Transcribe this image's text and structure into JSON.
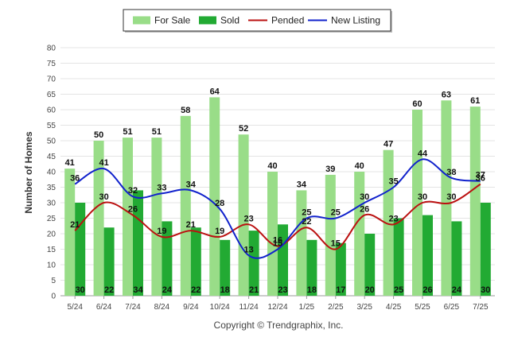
{
  "chart_data": {
    "type": "bar",
    "title": "",
    "xlabel": "",
    "ylabel": "Number of Homes",
    "ylim": [
      0,
      80
    ],
    "ytick_step": 5,
    "grid": true,
    "legend_position": "top-center",
    "credit": "Copyright © Trendgraphix, Inc.",
    "categories": [
      "5/24",
      "6/24",
      "7/24",
      "8/24",
      "9/24",
      "10/24",
      "11/24",
      "12/24",
      "1/25",
      "2/25",
      "3/25",
      "4/25",
      "5/25",
      "6/25",
      "7/25"
    ],
    "series": [
      {
        "name": "For Sale",
        "kind": "bar",
        "color": "#99dd88",
        "values": [
          41,
          50,
          51,
          51,
          58,
          64,
          52,
          40,
          34,
          39,
          40,
          47,
          60,
          63,
          61
        ]
      },
      {
        "name": "Sold",
        "kind": "bar",
        "color": "#22aa33",
        "values": [
          30,
          22,
          34,
          24,
          22,
          18,
          21,
          23,
          18,
          17,
          20,
          25,
          26,
          24,
          30
        ]
      },
      {
        "name": "Pended",
        "kind": "line",
        "color": "#bb1111",
        "values": [
          21,
          30,
          26,
          19,
          21,
          19,
          23,
          16,
          22,
          15,
          26,
          23,
          30,
          30,
          36
        ]
      },
      {
        "name": "New Listing",
        "kind": "line",
        "color": "#1122cc",
        "values": [
          36,
          41,
          32,
          33,
          34,
          28,
          13,
          15,
          25,
          25,
          30,
          35,
          44,
          38,
          37
        ]
      }
    ]
  }
}
